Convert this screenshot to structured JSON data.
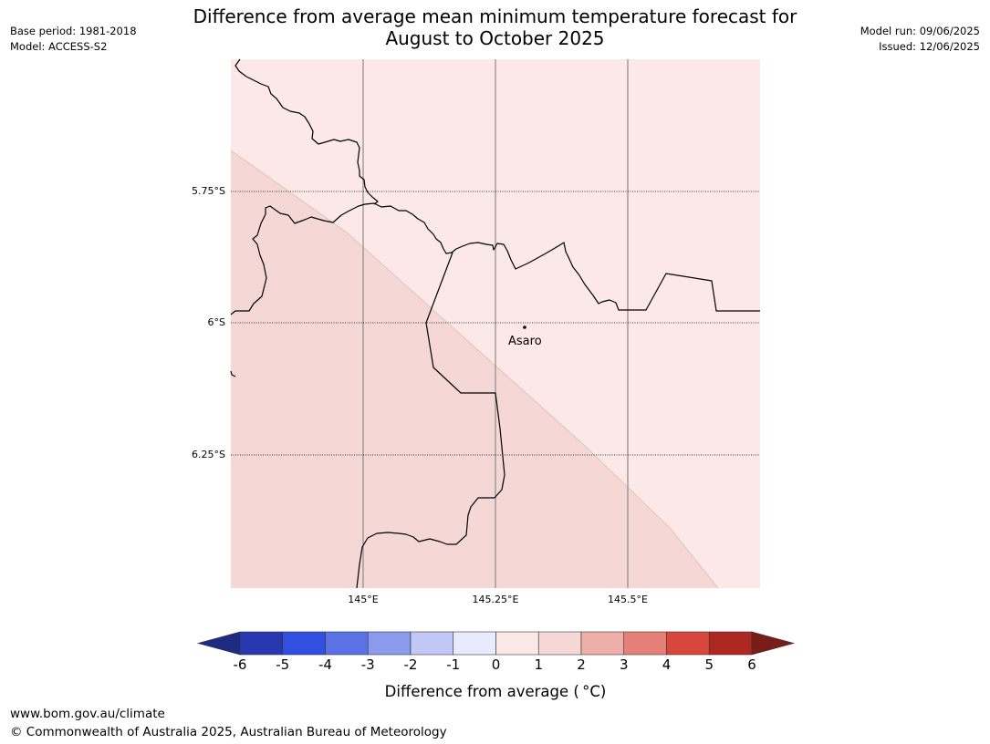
{
  "title_line1": "Difference from average mean minimum temperature forecast for",
  "title_line2": "August to October 2025",
  "base_period": "Base period: 1981-2018",
  "model": "Model: ACCESS-S2",
  "model_run": "Model run: 09/06/2025",
  "issued": "Issued: 12/06/2025",
  "map": {
    "lat_labels": [
      "5.75°S",
      "6°S",
      "6.25°S"
    ],
    "lon_labels": [
      "145°E",
      "145.25°E",
      "145.5°E"
    ],
    "place_label": "Asaro",
    "zone_colors": {
      "upper_right": "#fbe8e7",
      "lower_left": "#f5d7d5"
    }
  },
  "colorbar": {
    "title": "Difference from average ( °C)",
    "tick_labels": [
      "-6",
      "-5",
      "-4",
      "-3",
      "-2",
      "-1",
      "0",
      "1",
      "2",
      "3",
      "4",
      "5",
      "6"
    ],
    "colors": [
      "#1f2b82",
      "#2838b0",
      "#3150e0",
      "#5b72e6",
      "#8a9bed",
      "#c2c8f5",
      "#e9ebfc",
      "#fbe8e7",
      "#f5d7d5",
      "#eeafa8",
      "#e57f78",
      "#d9463b",
      "#ac2821",
      "#7a1c17"
    ]
  },
  "footer_url": "www.bom.gov.au/climate",
  "footer_copyright": "© Commonwealth of Australia 2025, Australian Bureau of Meteorology"
}
